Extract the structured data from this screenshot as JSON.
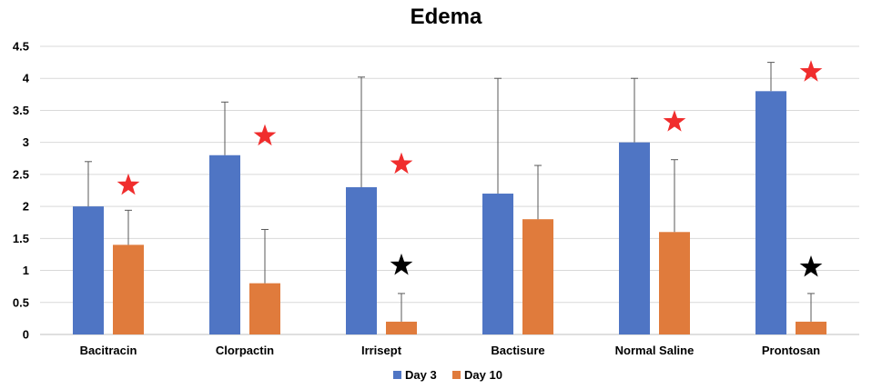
{
  "chart_data": {
    "type": "bar",
    "title": "Edema",
    "xlabel": "",
    "ylabel": "",
    "ylim": [
      0,
      4.5
    ],
    "yticks": [
      "0",
      "0.5",
      "1",
      "1.5",
      "2",
      "2.5",
      "3",
      "3.5",
      "4",
      "4.5"
    ],
    "ytick_values": [
      0,
      0.5,
      1,
      1.5,
      2,
      2.5,
      3,
      3.5,
      4,
      4.5
    ],
    "grid": true,
    "legend_position": "bottom",
    "categories": [
      "Bacitracin",
      "Clorpactin",
      "Irrisept",
      "Bactisure",
      "Normal Saline",
      "Prontosan"
    ],
    "series": [
      {
        "name": "Day 3",
        "color": "#4f75c4",
        "values": [
          2.0,
          2.8,
          2.3,
          2.2,
          3.0,
          3.8
        ],
        "error_upper": [
          2.7,
          3.63,
          4.02,
          4.0,
          4.0,
          4.25
        ]
      },
      {
        "name": "Day 10",
        "color": "#e07b3c",
        "values": [
          1.4,
          0.8,
          0.2,
          1.8,
          1.6,
          0.2
        ],
        "error_upper": [
          1.94,
          1.64,
          0.64,
          2.64,
          2.73,
          0.64
        ]
      }
    ],
    "annotations": [
      {
        "type": "star",
        "color": "#f02d2d",
        "category": 0,
        "y": 2.33
      },
      {
        "type": "star",
        "color": "#f02d2d",
        "category": 1,
        "y": 3.1
      },
      {
        "type": "star",
        "color": "#f02d2d",
        "category": 2,
        "y": 2.66
      },
      {
        "type": "star",
        "color": "#000000",
        "category": 2,
        "y": 1.08
      },
      {
        "type": "star",
        "color": "#f02d2d",
        "category": 4,
        "y": 3.32
      },
      {
        "type": "star",
        "color": "#f02d2d",
        "category": 5,
        "y": 4.1
      },
      {
        "type": "star",
        "color": "#000000",
        "category": 5,
        "y": 1.05
      }
    ]
  }
}
